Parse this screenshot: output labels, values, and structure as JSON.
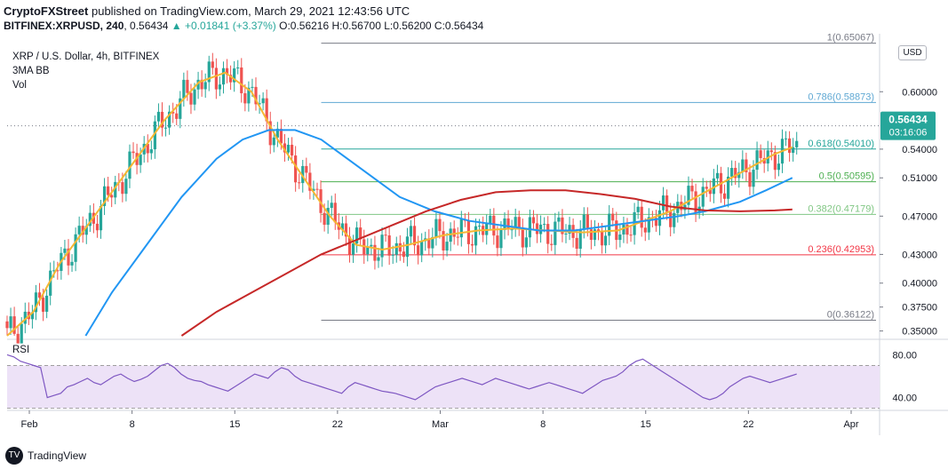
{
  "header": {
    "publisher": "CryptoFXStreet",
    "publisher_suffix": "published on TradingView.com, March 29, 2021 12:43:56 UTC",
    "symbol_full": "BITFINEX:XRPUSD, 240",
    "last": "0.56434",
    "change": "+0.01841 (+3.37%)",
    "ohlc": "O:0.56216 H:0.56700 L:0.56200 C:0.56434"
  },
  "legend": {
    "title": "XRP / U.S. Dollar, 4h, BITFINEX",
    "indicator": "3MA BB",
    "volume": "Vol"
  },
  "currency_button": "USD",
  "branding": "TradingView",
  "chart_data": {
    "type": "candlestick",
    "symbol": "XRP / U.S. Dollar, 4h, BITFINEX",
    "ylim": [
      0.345,
      0.655
    ],
    "y_ticks": [
      "0.35000",
      "0.37500",
      "0.40000",
      "0.43000",
      "0.47000",
      "0.51000",
      "0.54000",
      "0.60000"
    ],
    "x_ticks": [
      "Feb",
      "8",
      "15",
      "22",
      "Mar",
      "8",
      "15",
      "22",
      "Apr"
    ],
    "last_price": {
      "value": 0.56434,
      "label": "0.56434",
      "countdown": "03:16:06",
      "color": "#26a69a"
    },
    "fibonacci": [
      {
        "ratio": "1",
        "value": 0.65067,
        "label": "1(0.65067)",
        "color": "#787b86"
      },
      {
        "ratio": "0.786",
        "value": 0.58873,
        "label": "0.786(0.58873)",
        "color": "#5fa8d3"
      },
      {
        "ratio": "0.618",
        "value": 0.5401,
        "label": "0.618(0.54010)",
        "color": "#26a69a"
      },
      {
        "ratio": "0.5",
        "value": 0.50595,
        "label": "0.5(0.50595)",
        "color": "#4caf50"
      },
      {
        "ratio": "0.382",
        "value": 0.47179,
        "label": "0.382(0.47179)",
        "color": "#81c784"
      },
      {
        "ratio": "0.236",
        "value": 0.42953,
        "label": "0.236(0.42953)",
        "color": "#f23645"
      },
      {
        "ratio": "0",
        "value": 0.36122,
        "label": "0(0.36122)",
        "color": "#787b86"
      }
    ],
    "series": [
      {
        "color": "#f5b733",
        "points": [
          [
            0,
            0.345
          ],
          [
            0.03,
            0.37
          ],
          [
            0.06,
            0.42
          ],
          [
            0.1,
            0.47
          ],
          [
            0.14,
            0.52
          ],
          [
            0.18,
            0.57
          ],
          [
            0.22,
            0.61
          ],
          [
            0.25,
            0.62
          ],
          [
            0.28,
            0.6
          ],
          [
            0.31,
            0.55
          ],
          [
            0.34,
            0.51
          ],
          [
            0.37,
            0.47
          ],
          [
            0.4,
            0.44
          ],
          [
            0.43,
            0.435
          ],
          [
            0.46,
            0.44
          ],
          [
            0.5,
            0.45
          ],
          [
            0.54,
            0.455
          ],
          [
            0.58,
            0.457
          ],
          [
            0.62,
            0.455
          ],
          [
            0.66,
            0.453
          ],
          [
            0.7,
            0.455
          ],
          [
            0.73,
            0.465
          ],
          [
            0.76,
            0.475
          ],
          [
            0.79,
            0.49
          ],
          [
            0.82,
            0.505
          ],
          [
            0.85,
            0.52
          ],
          [
            0.88,
            0.535
          ],
          [
            0.9,
            0.542
          ]
        ]
      },
      {
        "color": "#2196f3",
        "points": [
          [
            0.09,
            0.345
          ],
          [
            0.12,
            0.39
          ],
          [
            0.16,
            0.44
          ],
          [
            0.2,
            0.49
          ],
          [
            0.24,
            0.53
          ],
          [
            0.27,
            0.55
          ],
          [
            0.3,
            0.56
          ],
          [
            0.33,
            0.56
          ],
          [
            0.36,
            0.55
          ],
          [
            0.39,
            0.53
          ],
          [
            0.42,
            0.51
          ],
          [
            0.45,
            0.49
          ],
          [
            0.49,
            0.475
          ],
          [
            0.53,
            0.465
          ],
          [
            0.57,
            0.46
          ],
          [
            0.61,
            0.455
          ],
          [
            0.65,
            0.455
          ],
          [
            0.69,
            0.46
          ],
          [
            0.73,
            0.465
          ],
          [
            0.77,
            0.47
          ],
          [
            0.8,
            0.475
          ],
          [
            0.84,
            0.485
          ],
          [
            0.87,
            0.497
          ],
          [
            0.9,
            0.51
          ]
        ]
      },
      {
        "color": "#c62828",
        "points": [
          [
            0.2,
            0.345
          ],
          [
            0.24,
            0.37
          ],
          [
            0.28,
            0.39
          ],
          [
            0.32,
            0.41
          ],
          [
            0.36,
            0.43
          ],
          [
            0.4,
            0.445
          ],
          [
            0.44,
            0.46
          ],
          [
            0.48,
            0.475
          ],
          [
            0.52,
            0.487
          ],
          [
            0.56,
            0.495
          ],
          [
            0.6,
            0.497
          ],
          [
            0.64,
            0.497
          ],
          [
            0.68,
            0.493
          ],
          [
            0.72,
            0.488
          ],
          [
            0.76,
            0.48
          ],
          [
            0.8,
            0.476
          ],
          [
            0.84,
            0.475
          ],
          [
            0.88,
            0.476
          ],
          [
            0.9,
            0.477
          ]
        ]
      }
    ],
    "rsi": {
      "label": "RSI",
      "ylim": [
        28,
        92
      ],
      "y_ticks": [
        "80.00",
        "40.00"
      ],
      "band_upper": 70,
      "band_lower": 30,
      "line_color": "#7e57c2",
      "band_color": "#ede2f7",
      "values": [
        80,
        78,
        74,
        72,
        70,
        68,
        40,
        42,
        44,
        50,
        52,
        55,
        58,
        54,
        52,
        56,
        60,
        62,
        58,
        55,
        57,
        60,
        65,
        70,
        72,
        68,
        62,
        58,
        56,
        55,
        52,
        50,
        48,
        46,
        50,
        54,
        58,
        62,
        60,
        58,
        64,
        68,
        66,
        60,
        56,
        54,
        52,
        50,
        48,
        46,
        44,
        50,
        54,
        52,
        50,
        48,
        46,
        45,
        44,
        42,
        40,
        38,
        42,
        46,
        50,
        52,
        54,
        56,
        58,
        56,
        54,
        52,
        55,
        58,
        56,
        54,
        52,
        50,
        48,
        50,
        52,
        54,
        52,
        50,
        48,
        46,
        44,
        48,
        52,
        56,
        58,
        60,
        64,
        70,
        74,
        76,
        72,
        68,
        64,
        60,
        56,
        52,
        48,
        44,
        40,
        38,
        40,
        44,
        50,
        54,
        58,
        60,
        58,
        56,
        54,
        56,
        58,
        60,
        62
      ]
    }
  }
}
